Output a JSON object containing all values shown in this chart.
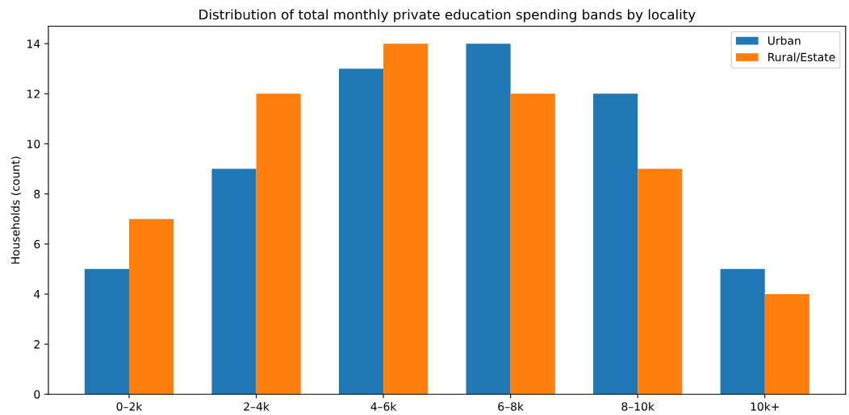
{
  "chart_data": {
    "type": "bar",
    "title": "Distribution of total monthly private education spending bands by locality",
    "ylabel": "Households (count)",
    "categories": [
      "0–2k",
      "2–4k",
      "4–6k",
      "6–8k",
      "8–10k",
      "10k+"
    ],
    "series": [
      {
        "name": "Urban",
        "color": "#1f77b4",
        "values": [
          5,
          9,
          13,
          14,
          12,
          5
        ]
      },
      {
        "name": "Rural/Estate",
        "color": "#ff7f0e",
        "values": [
          7,
          12,
          14,
          12,
          9,
          4
        ]
      }
    ],
    "ylim": [
      0,
      14.7
    ],
    "yticks": [
      0,
      2,
      4,
      6,
      8,
      10,
      12,
      14
    ],
    "grid": false,
    "legend": "top right"
  }
}
